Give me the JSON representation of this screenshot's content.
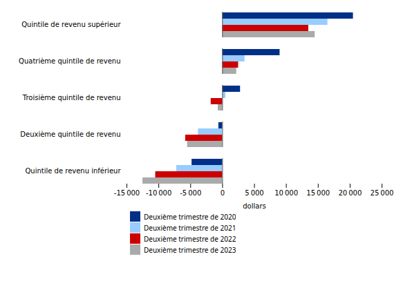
{
  "chart_data": {
    "type": "bar",
    "orientation": "horizontal",
    "categories": [
      "Quintile de revenu inférieur",
      "Deuxième quintile de revenu",
      "Troisième quintile de revenu",
      "Quatrième quintile de revenu",
      "Quintile de revenu supérieur"
    ],
    "series": [
      {
        "name": "Deuxième trimestre de 2020",
        "color": "#003087",
        "values": [
          -4800,
          -600,
          2800,
          9000,
          20500
        ]
      },
      {
        "name": "Deuxième trimestre de 2021",
        "color": "#99CCFF",
        "values": [
          -7200,
          -3800,
          500,
          3500,
          16500
        ]
      },
      {
        "name": "Deuxième trimestre de 2022",
        "color": "#CC0000",
        "values": [
          -10500,
          -5800,
          -1800,
          2500,
          13500
        ]
      },
      {
        "name": "Deuxième trimestre de 2023",
        "color": "#AAAAAA",
        "values": [
          -12500,
          -5500,
          -700,
          2200,
          14500
        ]
      }
    ],
    "xlabel": "dollars",
    "xlim": [
      -15000,
      25000
    ],
    "xticks": [
      {
        "value": -15000,
        "label": "-15 000"
      },
      {
        "value": -10000,
        "label": "-10 000"
      },
      {
        "value": -5000,
        "label": "-5 000"
      },
      0,
      {
        "value": 5000,
        "label": "5 000"
      },
      {
        "value": 10000,
        "label": "10 000"
      },
      {
        "value": 15000,
        "label": "15 000"
      },
      {
        "value": 20000,
        "label": "20 000"
      },
      {
        "value": 25000,
        "label": "25 000"
      }
    ],
    "legend": "bottom",
    "grid": false
  }
}
